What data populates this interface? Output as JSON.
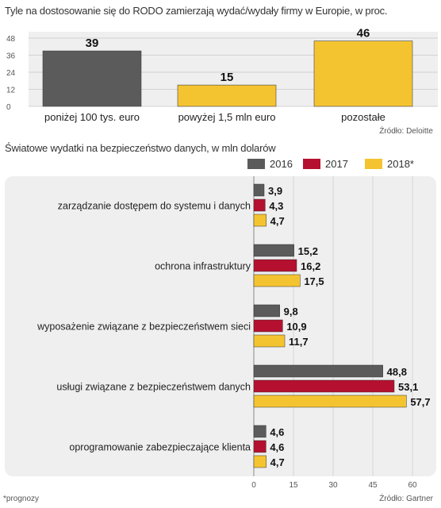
{
  "chart_data": [
    {
      "type": "bar",
      "title": "Tyle na dostosowanie się do RODO zamierzają wydać/wydały firmy w Europie, w proc.",
      "categories": [
        "poniżej 100 tys. euro",
        "powyżej 1,5 mln euro",
        "pozostałe"
      ],
      "values": [
        39,
        15,
        46
      ],
      "ylim": [
        0,
        48
      ],
      "yticks": [
        0,
        12,
        24,
        36,
        48
      ],
      "grid": true,
      "source": "Źródło: Deloitte",
      "colors": [
        "#5b5b5b",
        "#f4c430",
        "#f4c430"
      ]
    },
    {
      "type": "bar",
      "orientation": "horizontal",
      "title": "Światowe wydatki na bezpieczeństwo danych, w mln dolarów",
      "categories": [
        "zarządzanie dostępem do systemu i danych",
        "ochrona infrastruktury",
        "wyposażenie związane z bezpieczeństwem sieci",
        "usługi związane z bezpieczeństwem danych",
        "oprogramowanie zabezpieczające klienta"
      ],
      "series": [
        {
          "name": "2016",
          "color": "#5b5b5b",
          "values": [
            3.9,
            15.2,
            9.8,
            48.8,
            4.6
          ],
          "labels": [
            "3,9",
            "15,2",
            "9,8",
            "48,8",
            "4,6"
          ]
        },
        {
          "name": "2017",
          "color": "#b5102f",
          "values": [
            4.3,
            16.2,
            10.9,
            53.1,
            4.6
          ],
          "labels": [
            "4,3",
            "16,2",
            "10,9",
            "53,1",
            "4,6"
          ]
        },
        {
          "name": "2018*",
          "color": "#f4c430",
          "values": [
            4.7,
            17.5,
            11.7,
            57.7,
            4.7
          ],
          "labels": [
            "4,7",
            "17,5",
            "11,7",
            "57,7",
            "4,7"
          ]
        }
      ],
      "xlim": [
        0,
        60
      ],
      "xticks": [
        0,
        15,
        30,
        45,
        60
      ],
      "legend": "top-right",
      "footnote": "*prognozy",
      "source": "Źródło: Gartner"
    }
  ]
}
